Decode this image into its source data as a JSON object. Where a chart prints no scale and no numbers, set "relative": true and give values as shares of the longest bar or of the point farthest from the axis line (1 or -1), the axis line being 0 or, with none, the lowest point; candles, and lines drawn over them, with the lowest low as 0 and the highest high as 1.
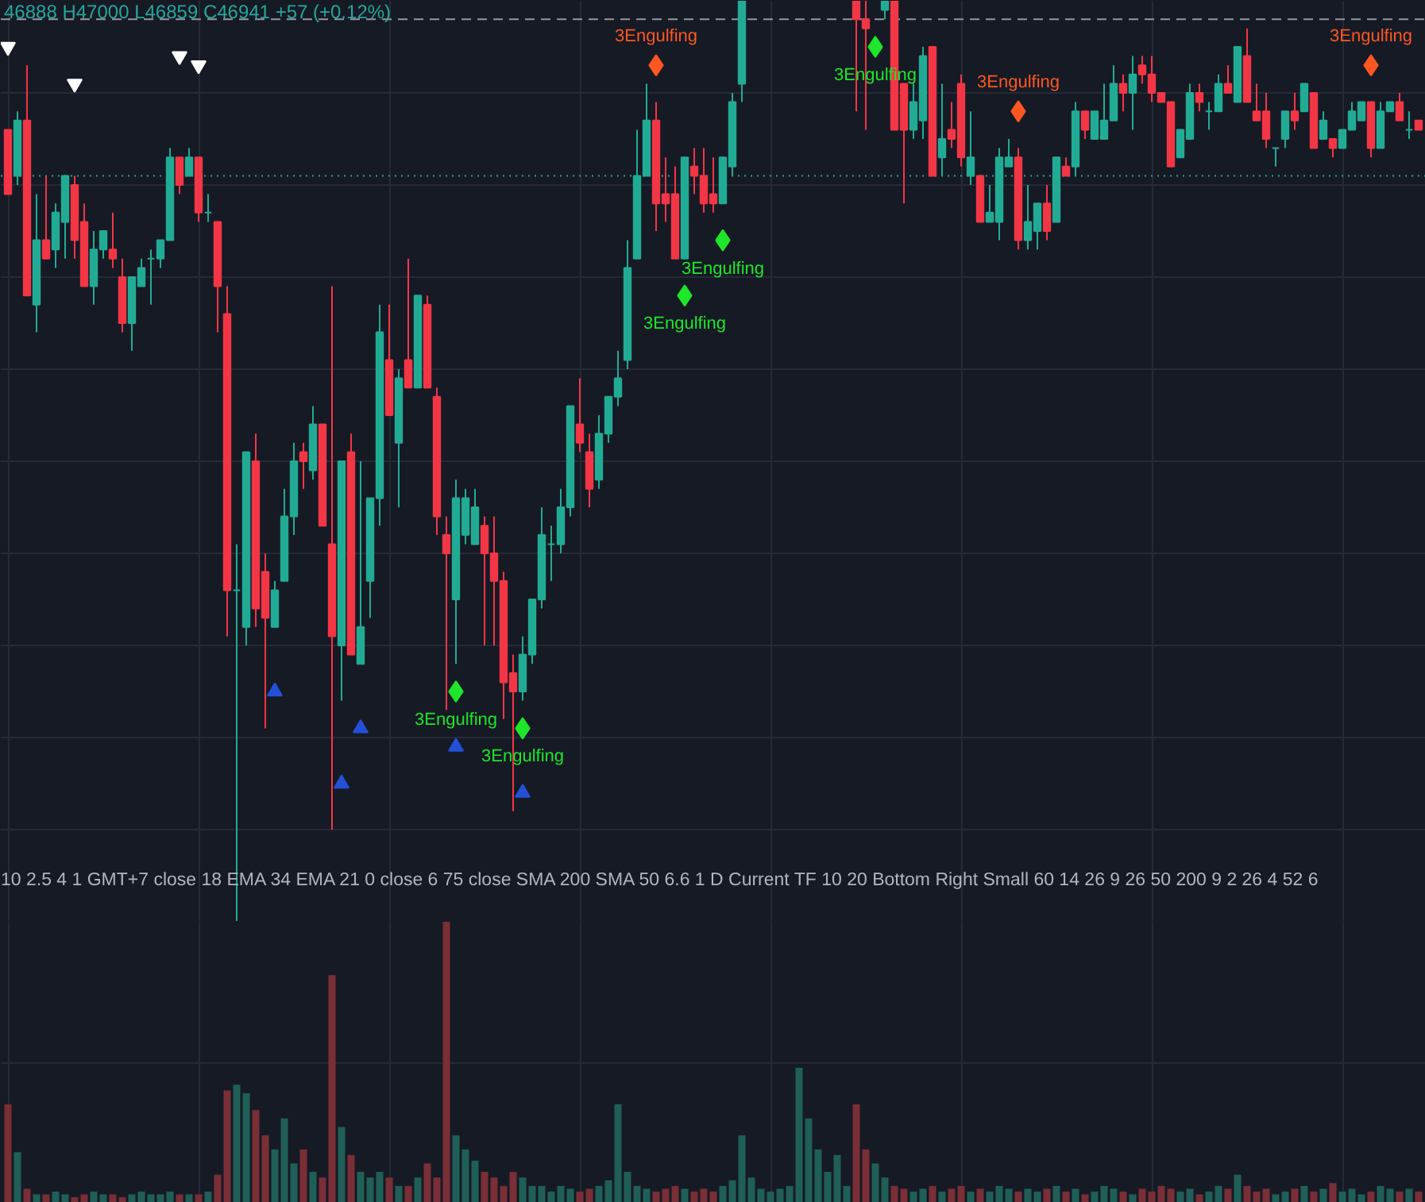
{
  "chart_data": [
    {
      "type": "candlestick",
      "relative": true,
      "grid": true,
      "categories": [
        null,
        null,
        null,
        null,
        null,
        null,
        null,
        null,
        null,
        null,
        null,
        null,
        null,
        null,
        null,
        null,
        null,
        null,
        null,
        null,
        null,
        null,
        null,
        null,
        null,
        null,
        null,
        null,
        null,
        null,
        null,
        null,
        null,
        null,
        null,
        null,
        null,
        null,
        null,
        null,
        null,
        null,
        null,
        null,
        null,
        null,
        null,
        null,
        null,
        null,
        null,
        null,
        null,
        null,
        null,
        null,
        null,
        null,
        null,
        null,
        null,
        null,
        null,
        null,
        null,
        null,
        null,
        null,
        null,
        null,
        null,
        null,
        null,
        null,
        null,
        null,
        null,
        null,
        null,
        null,
        null,
        null,
        null,
        null,
        null,
        null,
        null,
        null,
        null,
        null,
        null,
        null,
        null,
        null,
        null,
        null,
        null,
        null,
        null,
        null,
        null,
        null,
        null,
        null,
        null,
        null,
        null,
        null,
        null,
        null,
        null,
        null,
        null,
        null,
        null,
        null,
        null,
        null,
        null,
        null,
        null,
        null,
        null,
        null,
        null,
        null,
        null,
        null,
        null,
        null,
        null,
        null,
        null,
        null,
        null,
        null,
        null,
        null,
        null,
        null,
        null,
        null,
        null,
        null,
        null,
        null,
        null,
        null,
        null
      ],
      "ohlc": [
        [
          0.86,
          0.86,
          0.79,
          0.79
        ],
        [
          0.81,
          0.88,
          0.8,
          0.87
        ],
        [
          0.87,
          0.93,
          0.68,
          0.68
        ],
        [
          0.67,
          0.79,
          0.64,
          0.74
        ],
        [
          0.74,
          0.81,
          0.72,
          0.72
        ],
        [
          0.73,
          0.78,
          0.71,
          0.77
        ],
        [
          0.76,
          0.81,
          0.72,
          0.81
        ],
        [
          0.8,
          0.81,
          0.72,
          0.74
        ],
        [
          0.76,
          0.78,
          0.69,
          0.69
        ],
        [
          0.69,
          0.75,
          0.67,
          0.73
        ],
        [
          0.73,
          0.75,
          0.72,
          0.75
        ],
        [
          0.73,
          0.77,
          0.71,
          0.72
        ],
        [
          0.7,
          0.72,
          0.64,
          0.65
        ],
        [
          0.65,
          0.7,
          0.62,
          0.7
        ],
        [
          0.69,
          0.72,
          0.69,
          0.71
        ],
        [
          0.72,
          0.73,
          0.67,
          0.72
        ],
        [
          0.72,
          0.74,
          0.71,
          0.74
        ],
        [
          0.74,
          0.84,
          0.74,
          0.83
        ],
        [
          0.83,
          0.83,
          0.79,
          0.8
        ],
        [
          0.81,
          0.84,
          0.81,
          0.83
        ],
        [
          0.83,
          0.83,
          0.76,
          0.77
        ],
        [
          0.77,
          0.79,
          0.76,
          0.77
        ],
        [
          0.76,
          0.76,
          0.64,
          0.69
        ],
        [
          0.66,
          0.69,
          0.31,
          0.36
        ],
        [
          0.36,
          0.41,
          0,
          0.36
        ],
        [
          0.32,
          0.51,
          0.3,
          0.51
        ],
        [
          0.5,
          0.53,
          0.32,
          0.34
        ],
        [
          0.38,
          0.4,
          0.21,
          0.33
        ],
        [
          0.32,
          0.37,
          0.32,
          0.36
        ],
        [
          0.37,
          0.47,
          0.37,
          0.44
        ],
        [
          0.44,
          0.52,
          0.42,
          0.5
        ],
        [
          0.51,
          0.52,
          0.47,
          0.5
        ],
        [
          0.49,
          0.56,
          0.48,
          0.54
        ],
        [
          0.54,
          0.54,
          0.43,
          0.43
        ],
        [
          0.41,
          0.69,
          0.1,
          0.31
        ],
        [
          0.3,
          0.5,
          0.24,
          0.5
        ],
        [
          0.51,
          0.53,
          0.29,
          0.29
        ],
        [
          0.28,
          0.5,
          0.28,
          0.32
        ],
        [
          0.37,
          0.46,
          0.33,
          0.46
        ],
        [
          0.46,
          0.67,
          0.43,
          0.64
        ],
        [
          0.61,
          0.67,
          0.55,
          0.55
        ],
        [
          0.52,
          0.6,
          0.45,
          0.59
        ],
        [
          0.61,
          0.72,
          0.58,
          0.58
        ],
        [
          0.58,
          0.68,
          0.58,
          0.68
        ],
        [
          0.67,
          0.68,
          0.58,
          0.58
        ],
        [
          0.57,
          0.58,
          0.42,
          0.44
        ],
        [
          0.42,
          0.44,
          0.23,
          0.4
        ],
        [
          0.35,
          0.48,
          0.28,
          0.46
        ],
        [
          0.42,
          0.47,
          0.41,
          0.46
        ],
        [
          0.41,
          0.47,
          0.41,
          0.45
        ],
        [
          0.43,
          0.44,
          0.3,
          0.4
        ],
        [
          0.4,
          0.44,
          0.3,
          0.37
        ],
        [
          0.37,
          0.38,
          0.22,
          0.26
        ],
        [
          0.27,
          0.29,
          0.12,
          0.25
        ],
        [
          0.25,
          0.31,
          0.24,
          0.29
        ],
        [
          0.29,
          0.35,
          0.28,
          0.35
        ],
        [
          0.35,
          0.45,
          0.34,
          0.42
        ],
        [
          0.41,
          0.43,
          0.37,
          0.41
        ],
        [
          0.41,
          0.47,
          0.4,
          0.45
        ],
        [
          0.45,
          0.56,
          0.44,
          0.56
        ],
        [
          0.54,
          0.59,
          0.51,
          0.52
        ],
        [
          0.51,
          0.53,
          0.45,
          0.47
        ],
        [
          0.48,
          0.55,
          0.47,
          0.53
        ],
        [
          0.53,
          0.57,
          0.52,
          0.57
        ],
        [
          0.57,
          0.62,
          0.56,
          0.59
        ],
        [
          0.61,
          0.74,
          0.6,
          0.71
        ],
        [
          0.72,
          0.86,
          0.72,
          0.81
        ],
        [
          0.81,
          0.91,
          0.81,
          0.87
        ],
        [
          0.87,
          0.89,
          0.75,
          0.78
        ],
        [
          0.79,
          0.83,
          0.76,
          0.78
        ],
        [
          0.79,
          0.82,
          0.72,
          0.72
        ],
        [
          0.72,
          0.83,
          0.72,
          0.83
        ],
        [
          0.82,
          0.84,
          0.79,
          0.81
        ],
        [
          0.81,
          0.84,
          0.77,
          0.78
        ],
        [
          0.79,
          0.83,
          0.77,
          0.78
        ],
        [
          0.78,
          0.83,
          0.78,
          0.83
        ],
        [
          0.82,
          0.9,
          0.81,
          0.89
        ],
        [
          0.91,
          1,
          0.89,
          1
        ],
        null,
        null,
        null,
        null,
        null,
        null,
        null,
        null,
        null,
        null,
        null,
        [
          1,
          1,
          0.88,
          0.98
        ],
        [
          0.98,
          1,
          0.86,
          0.97
        ],
        null,
        [
          0.99,
          1,
          0.98,
          1
        ],
        [
          1,
          1,
          0.86,
          0.86
        ],
        [
          0.91,
          0.91,
          0.78,
          0.86
        ],
        [
          0.86,
          0.91,
          0.85,
          0.89
        ],
        [
          0.87,
          0.95,
          0.85,
          0.94
        ],
        [
          0.95,
          0.95,
          0.81,
          0.81
        ],
        [
          0.83,
          0.91,
          0.81,
          0.85
        ],
        [
          0.86,
          0.89,
          0.84,
          0.85
        ],
        [
          0.91,
          0.92,
          0.82,
          0.83
        ],
        [
          0.81,
          0.88,
          0.8,
          0.83
        ],
        [
          0.81,
          0.81,
          0.76,
          0.76
        ],
        [
          0.76,
          0.8,
          0.76,
          0.77
        ],
        [
          0.76,
          0.84,
          0.74,
          0.83
        ],
        [
          0.82,
          0.85,
          0.82,
          0.83
        ],
        [
          0.83,
          0.84,
          0.73,
          0.74
        ],
        [
          0.74,
          0.8,
          0.73,
          0.76
        ],
        [
          0.75,
          0.78,
          0.73,
          0.78
        ],
        [
          0.78,
          0.8,
          0.74,
          0.75
        ],
        [
          0.76,
          0.83,
          0.76,
          0.83
        ],
        [
          0.82,
          0.83,
          0.81,
          0.81
        ],
        [
          0.82,
          0.89,
          0.81,
          0.88
        ],
        [
          0.88,
          0.88,
          0.85,
          0.86
        ],
        [
          0.85,
          0.88,
          0.85,
          0.88
        ],
        [
          0.85,
          0.91,
          0.85,
          0.87
        ],
        [
          0.87,
          0.93,
          0.87,
          0.91
        ],
        [
          0.91,
          0.92,
          0.88,
          0.9
        ],
        [
          0.9,
          0.94,
          0.86,
          0.92
        ],
        [
          0.93,
          0.94,
          0.91,
          0.92
        ],
        [
          0.92,
          0.94,
          0.89,
          0.9
        ],
        [
          0.9,
          0.9,
          0.89,
          0.89
        ],
        [
          0.89,
          0.89,
          0.82,
          0.82
        ],
        [
          0.83,
          0.86,
          0.83,
          0.86
        ],
        [
          0.85,
          0.91,
          0.85,
          0.9
        ],
        [
          0.9,
          0.91,
          0.88,
          0.89
        ],
        [
          0.88,
          0.89,
          0.86,
          0.88
        ],
        [
          0.88,
          0.92,
          0.88,
          0.91
        ],
        [
          0.91,
          0.93,
          0.9,
          0.9
        ],
        [
          0.89,
          0.95,
          0.89,
          0.95
        ],
        [
          0.94,
          0.97,
          0.89,
          0.89
        ],
        [
          0.88,
          0.91,
          0.87,
          0.87
        ],
        [
          0.88,
          0.9,
          0.84,
          0.85
        ],
        [
          0.84,
          0.84,
          0.82,
          0.84
        ],
        [
          0.85,
          0.88,
          0.84,
          0.88
        ],
        [
          0.88,
          0.9,
          0.86,
          0.87
        ],
        [
          0.88,
          0.91,
          0.88,
          0.91
        ],
        [
          0.9,
          0.9,
          0.84,
          0.84
        ],
        [
          0.85,
          0.88,
          0.85,
          0.87
        ],
        [
          0.85,
          0.85,
          0.83,
          0.84
        ],
        [
          0.84,
          0.86,
          0.84,
          0.86
        ],
        [
          0.86,
          0.89,
          0.86,
          0.88
        ],
        [
          0.87,
          0.89,
          0.87,
          0.89
        ],
        [
          0.89,
          0.89,
          0.83,
          0.84
        ],
        [
          0.84,
          0.89,
          0.84,
          0.88
        ],
        [
          0.88,
          0.89,
          0.88,
          0.89
        ],
        [
          0.89,
          0.9,
          0.87,
          0.87
        ],
        [
          0.86,
          0.88,
          0.85,
          0.86
        ],
        [
          0.87,
          0.87,
          0.86,
          0.86
        ]
      ],
      "series": [
        {
          "type": "scatter",
          "name": "3Engulfing",
          "marker": "diamond",
          "color": "#1ee62a",
          "values": [
            null,
            null,
            null,
            null,
            null,
            null,
            null,
            null,
            null,
            null,
            null,
            null,
            null,
            null,
            null,
            null,
            null,
            null,
            null,
            null,
            null,
            null,
            null,
            null,
            null,
            null,
            null,
            null,
            null,
            null,
            null,
            null,
            null,
            null,
            null,
            null,
            null,
            null,
            null,
            null,
            null,
            null,
            null,
            null,
            null,
            null,
            null,
            0.25,
            null,
            null,
            null,
            null,
            null,
            null,
            0.21,
            null,
            null,
            null,
            null,
            null,
            null,
            null,
            null,
            null,
            null,
            null,
            null,
            null,
            null,
            null,
            null,
            0.68,
            null,
            null,
            null,
            0.74,
            null,
            null,
            null,
            null,
            null,
            null,
            null,
            null,
            null,
            null,
            null,
            null,
            null,
            null,
            null,
            0.95,
            null,
            null,
            null,
            null,
            null,
            null,
            null,
            null,
            null,
            null,
            null,
            null,
            null,
            null,
            null,
            null,
            null,
            null,
            null,
            null,
            null,
            null,
            null,
            null,
            null,
            null,
            null,
            null,
            null,
            null,
            null,
            null,
            null,
            null,
            null,
            null,
            null,
            null,
            null,
            null,
            null,
            null,
            null,
            null,
            null,
            null,
            null,
            null,
            null,
            null,
            null,
            null,
            null,
            null,
            null,
            null,
            null
          ]
        },
        {
          "type": "scatter",
          "name": "3Engulfing",
          "marker": "diamond",
          "color": "#ff5722",
          "values": [
            null,
            null,
            null,
            null,
            null,
            null,
            null,
            null,
            null,
            null,
            null,
            null,
            null,
            null,
            null,
            null,
            null,
            null,
            null,
            null,
            null,
            null,
            null,
            null,
            null,
            null,
            null,
            null,
            null,
            null,
            null,
            null,
            null,
            null,
            null,
            null,
            null,
            null,
            null,
            null,
            null,
            null,
            null,
            null,
            null,
            null,
            null,
            null,
            null,
            null,
            null,
            null,
            null,
            null,
            null,
            null,
            null,
            null,
            null,
            null,
            null,
            null,
            null,
            null,
            null,
            null,
            null,
            null,
            0.93,
            null,
            null,
            null,
            null,
            null,
            null,
            null,
            null,
            null,
            null,
            null,
            null,
            null,
            null,
            null,
            null,
            null,
            null,
            null,
            null,
            null,
            null,
            null,
            null,
            null,
            null,
            null,
            null,
            null,
            null,
            null,
            null,
            null,
            null,
            null,
            null,
            null,
            0.88,
            null,
            null,
            null,
            null,
            null,
            null,
            null,
            null,
            null,
            null,
            null,
            null,
            null,
            null,
            null,
            null,
            null,
            null,
            null,
            null,
            null,
            null,
            null,
            null,
            null,
            null,
            null,
            null,
            null,
            null,
            null,
            null,
            null,
            null,
            null,
            null,
            0.93,
            null,
            null,
            null,
            null,
            null
          ]
        },
        {
          "type": "scatter",
          "marker": "triangle_down",
          "color": "#ffffff",
          "values": [
            0.95,
            null,
            null,
            null,
            null,
            null,
            null,
            0.91,
            null,
            null,
            null,
            null,
            null,
            null,
            null,
            null,
            null,
            null,
            0.94,
            null,
            0.93,
            null,
            null,
            null,
            null,
            null,
            null,
            null,
            null,
            null,
            null,
            null,
            null,
            null,
            null,
            null,
            null,
            null,
            null,
            null,
            null,
            null,
            null,
            null,
            null,
            null,
            null,
            null,
            null,
            null,
            null,
            null,
            null,
            null,
            null,
            null,
            null,
            null,
            null,
            null,
            null,
            null,
            null,
            null,
            null,
            null,
            null,
            null,
            null,
            null,
            null,
            null,
            null,
            null,
            null,
            null,
            null,
            null,
            null,
            null,
            null,
            null,
            null,
            null,
            null,
            null,
            null,
            null,
            null,
            null,
            null,
            null,
            null,
            null,
            null,
            null,
            null,
            null,
            null,
            null,
            null,
            null,
            null,
            null,
            null,
            null,
            null,
            null,
            null,
            null,
            null,
            null,
            null,
            null,
            null,
            null,
            null,
            null,
            null,
            null,
            null,
            null,
            null,
            null,
            null,
            null,
            null,
            null,
            null,
            null,
            null,
            null,
            null,
            null,
            null,
            null,
            null,
            null,
            null,
            null,
            null,
            null,
            null,
            null,
            null,
            null,
            null,
            null,
            null
          ]
        },
        {
          "type": "scatter",
          "marker": "triangle",
          "color": "#2450d8",
          "values": [
            null,
            null,
            null,
            null,
            null,
            null,
            null,
            null,
            null,
            null,
            null,
            null,
            null,
            null,
            null,
            null,
            null,
            null,
            null,
            null,
            null,
            null,
            null,
            null,
            null,
            null,
            null,
            null,
            0.25,
            null,
            null,
            null,
            null,
            null,
            null,
            0.15,
            null,
            0.21,
            null,
            null,
            null,
            null,
            null,
            null,
            null,
            null,
            null,
            0.19,
            null,
            null,
            null,
            null,
            null,
            null,
            0.14,
            null,
            null,
            null,
            null,
            null,
            null,
            null,
            null,
            null,
            null,
            null,
            null,
            null,
            null,
            null,
            null,
            null,
            null,
            null,
            null,
            null,
            null,
            null,
            null,
            null,
            null,
            null,
            null,
            null,
            null,
            null,
            null,
            null,
            null,
            null,
            null,
            null,
            null,
            null,
            null,
            null,
            null,
            null,
            null,
            null,
            null,
            null,
            null,
            null,
            null,
            null,
            null,
            null,
            null,
            null,
            null,
            null,
            null,
            null,
            null,
            null,
            null,
            null,
            null,
            null,
            null,
            null,
            null,
            null,
            null,
            null,
            null,
            null,
            null,
            null,
            null,
            null,
            null,
            null,
            null,
            null,
            null,
            null,
            null,
            null,
            null,
            null,
            null,
            null,
            null,
            null,
            null,
            null,
            null
          ]
        }
      ],
      "ref_lines": [
        {
          "axis": "y",
          "value": 0.98,
          "color": "#9598a1",
          "line_style": "dashed"
        },
        {
          "axis": "y",
          "value": 0.81,
          "color": "#26a69a",
          "line_style": "dotted"
        }
      ],
      "annotations": [
        "46888 H47000 L46859 C46941 +57 (+0.12%)",
        "10 2.5 4 1 GMT+7 close 18 EMA 34 EMA 21 0 close 6 75 close SMA 200 SMA 50 6.6 1 D Current TF 10 20 Bottom Right Small 60 14 26 9 26 50 200 9 2 26 4 52 6"
      ]
    },
    {
      "type": "bar",
      "relative": true,
      "grid": true,
      "categories": [
        null,
        null,
        null,
        null,
        null,
        null,
        null,
        null,
        null,
        null,
        null,
        null,
        null,
        null,
        null,
        null,
        null,
        null,
        null,
        null,
        null,
        null,
        null,
        null,
        null,
        null,
        null,
        null,
        null,
        null,
        null,
        null,
        null,
        null,
        null,
        null,
        null,
        null,
        null,
        null,
        null,
        null,
        null,
        null,
        null,
        null,
        null,
        null,
        null,
        null,
        null,
        null,
        null,
        null,
        null,
        null,
        null,
        null,
        null,
        null,
        null,
        null,
        null,
        null,
        null,
        null,
        null,
        null,
        null,
        null,
        null,
        null,
        null,
        null,
        null,
        null,
        null,
        null,
        null,
        null,
        null,
        null,
        null,
        null,
        null,
        null,
        null,
        null,
        null,
        null,
        null,
        null,
        null,
        null,
        null,
        null,
        null,
        null,
        null,
        null,
        null,
        null,
        null,
        null,
        null,
        null,
        null,
        null,
        null,
        null,
        null,
        null,
        null,
        null,
        null,
        null,
        null,
        null,
        null,
        null,
        null,
        null,
        null,
        null,
        null,
        null,
        null,
        null,
        null,
        null,
        null,
        null,
        null,
        null,
        null,
        null,
        null,
        null,
        null,
        null,
        null,
        null,
        null,
        null,
        null,
        null,
        null,
        null,
        null
      ],
      "values": [
        0.35,
        0.18,
        0.05,
        0.03,
        0.03,
        0.04,
        0.03,
        0.02,
        0.03,
        0.04,
        0.03,
        0.03,
        0.02,
        0.03,
        0.04,
        0.03,
        0.03,
        0.04,
        0.03,
        0.03,
        0.03,
        0.04,
        0.1,
        0.4,
        0.42,
        0.39,
        0.33,
        0.24,
        0.19,
        0.3,
        0.14,
        0.19,
        0.11,
        0.09,
        0.81,
        0.27,
        0.17,
        0.11,
        0.09,
        0.11,
        0.09,
        0.06,
        0.06,
        0.09,
        0.14,
        0.09,
        1,
        0.24,
        0.19,
        0.15,
        0.11,
        0.09,
        0.06,
        0.11,
        0.09,
        0.06,
        0.06,
        0.04,
        0.06,
        0.05,
        0.04,
        0.05,
        0.06,
        0.08,
        0.35,
        0.11,
        0.06,
        0.05,
        0.04,
        0.05,
        0.06,
        0.05,
        0.04,
        0.05,
        0.04,
        0.06,
        0.08,
        0.24,
        0.09,
        0.05,
        0.04,
        0.05,
        0.06,
        0.48,
        0.3,
        0.19,
        0.11,
        0.17,
        0.06,
        0.35,
        0.19,
        0.14,
        0.09,
        0.06,
        0.05,
        0.04,
        0.05,
        0.06,
        0.04,
        0.05,
        0.06,
        0.04,
        0.05,
        0.04,
        0.06,
        0.05,
        0.04,
        0.05,
        0.04,
        0.05,
        0.06,
        0.04,
        0.05,
        0.03,
        0.04,
        0.06,
        0.05,
        0.04,
        0.03,
        0.05,
        0.04,
        0.06,
        0.05,
        0.04,
        0.05,
        0.03,
        0.04,
        0.06,
        0.05,
        0.1,
        0.06,
        0.04,
        0.05,
        0.03,
        0.04,
        0.05,
        0.06,
        0.04,
        0.05,
        0.07,
        0.04,
        0.05,
        0.03,
        0.04,
        0.06,
        0.05,
        0.04,
        0.05,
        0.04
      ],
      "colors": [
        "#7a2e36",
        "#1f5f58",
        "#7a2e36",
        "#1f5f58",
        "#7a2e36",
        "#1f5f58",
        "#1f5f58",
        "#7a2e36",
        "#7a2e36",
        "#1f5f58",
        "#1f5f58",
        "#7a2e36",
        "#7a2e36",
        "#1f5f58",
        "#1f5f58",
        "#1f5f58",
        "#1f5f58",
        "#1f5f58",
        "#7a2e36",
        "#1f5f58",
        "#7a2e36",
        "#1f5f58",
        "#7a2e36",
        "#7a2e36",
        "#1f5f58",
        "#1f5f58",
        "#7a2e36",
        "#7a2e36",
        "#1f5f58",
        "#1f5f58",
        "#1f5f58",
        "#7a2e36",
        "#1f5f58",
        "#7a2e36",
        "#7a2e36",
        "#1f5f58",
        "#7a2e36",
        "#1f5f58",
        "#1f5f58",
        "#1f5f58",
        "#7a2e36",
        "#1f5f58",
        "#7a2e36",
        "#1f5f58",
        "#7a2e36",
        "#7a2e36",
        "#7a2e36",
        "#1f5f58",
        "#1f5f58",
        "#1f5f58",
        "#7a2e36",
        "#7a2e36",
        "#7a2e36",
        "#7a2e36",
        "#1f5f58",
        "#1f5f58",
        "#1f5f58",
        "#1f5f58",
        "#1f5f58",
        "#1f5f58",
        "#7a2e36",
        "#7a2e36",
        "#1f5f58",
        "#1f5f58",
        "#1f5f58",
        "#1f5f58",
        "#1f5f58",
        "#1f5f58",
        "#7a2e36",
        "#7a2e36",
        "#7a2e36",
        "#1f5f58",
        "#7a2e36",
        "#7a2e36",
        "#7a2e36",
        "#1f5f58",
        "#1f5f58",
        "#1f5f58",
        "#1f5f58",
        "#1f5f58",
        "#1f5f58",
        "#1f5f58",
        "#1f5f58",
        "#1f5f58",
        "#1f5f58",
        "#1f5f58",
        "#1f5f58",
        "#1f5f58",
        "#1f5f58",
        "#7a2e36",
        "#7a2e36",
        "#1f5f58",
        "#1f5f58",
        "#7a2e36",
        "#7a2e36",
        "#1f5f58",
        "#1f5f58",
        "#7a2e36",
        "#1f5f58",
        "#7a2e36",
        "#7a2e36",
        "#1f5f58",
        "#7a2e36",
        "#1f5f58",
        "#1f5f58",
        "#1f5f58",
        "#7a2e36",
        "#1f5f58",
        "#1f5f58",
        "#7a2e36",
        "#1f5f58",
        "#7a2e36",
        "#1f5f58",
        "#7a2e36",
        "#1f5f58",
        "#1f5f58",
        "#1f5f58",
        "#7a2e36",
        "#1f5f58",
        "#7a2e36",
        "#7a2e36",
        "#7a2e36",
        "#7a2e36",
        "#1f5f58",
        "#1f5f58",
        "#7a2e36",
        "#1f5f58",
        "#1f5f58",
        "#7a2e36",
        "#1f5f58",
        "#7a2e36",
        "#7a2e36",
        "#7a2e36",
        "#1f5f58",
        "#1f5f58",
        "#7a2e36",
        "#1f5f58",
        "#7a2e36",
        "#1f5f58",
        "#7a2e36",
        "#1f5f58",
        "#1f5f58",
        "#1f5f58",
        "#7a2e36",
        "#1f5f58",
        "#1f5f58",
        "#7a2e36",
        "#1f5f58",
        "#7a2e36"
      ]
    }
  ]
}
